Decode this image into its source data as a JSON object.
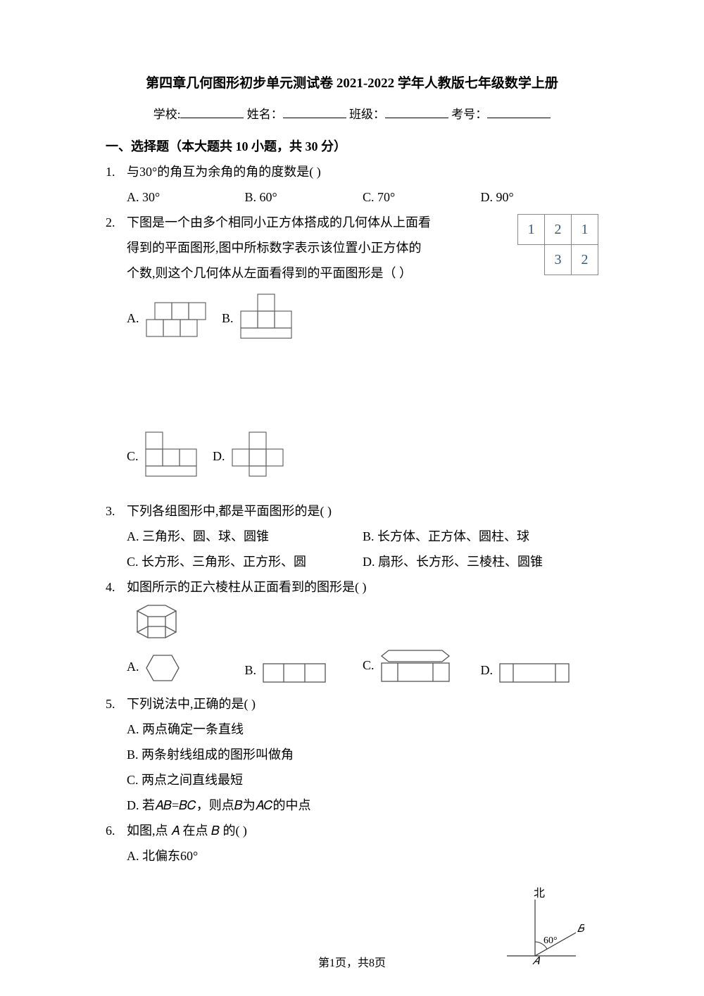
{
  "title": "第四章几何图形初步单元测试卷 2021-2022 学年人教版七年级数学上册",
  "info": {
    "school_label": "学校:",
    "name_label": "姓名：",
    "class_label": "班级：",
    "examno_label": "考号："
  },
  "section1": {
    "head": "一、选择题（本大题共 10 小题，共 30 分）"
  },
  "q1": {
    "num": "1.",
    "text": "与30°的角互为余角的角的度数是(    )",
    "optA": "A. 30°",
    "optB": "B. 60°",
    "optC": "C. 70°",
    "optD": "D. 90°"
  },
  "q2": {
    "num": "2.",
    "line1": "下图是一个由多个相同小正方体搭成的几何体从上面看",
    "line2": "得到的平面图形,图中所标数字表示该位置小正方体的",
    "line3": "个数,则这个几何体从左面看得到的平面图形是（    ）",
    "topview": [
      [
        "1",
        "2",
        "1"
      ],
      [
        "",
        "3",
        "2"
      ]
    ],
    "optA": "A.",
    "optB": "B.",
    "optC": "C.",
    "optD": "D.",
    "unit": 24,
    "stroke": "#666666",
    "stroke_width": 1.2,
    "shapeA": {
      "cols": 3,
      "heights": [
        1,
        1,
        1
      ],
      "gridH": 2
    },
    "shapeB": {
      "cols": 3,
      "heights": [
        1,
        2,
        1
      ],
      "gridH": 3
    },
    "shapeC": {
      "cols": 3,
      "heights": [
        2,
        1,
        1
      ],
      "gridH": 3
    },
    "shapeD": {
      "cols": 3,
      "heights": [
        1,
        2,
        1
      ],
      "gridH": 3,
      "offset_extra_bottom": true
    }
  },
  "q3": {
    "num": "3.",
    "text": "下列各组图形中,都是平面图形的是(    )",
    "optA": "A. 三角形、圆、球、圆锥",
    "optB": "B. 长方体、正方体、圆柱、球",
    "optC": "C. 长方形、三角形、正方形、圆",
    "optD": "D. 扇形、长方形、三棱柱、圆锥"
  },
  "q4": {
    "num": "4.",
    "text": "如图所示的正六棱柱从正面看到的图形是(    )",
    "optA": "A.",
    "optB": "B.",
    "optC": "C.",
    "optD": "D.",
    "stroke": "#555555",
    "stroke_width": 1.3
  },
  "q5": {
    "num": "5.",
    "text": "下列说法中,正确的是(    )",
    "optA": "A. 两点确定一条直线",
    "optB": "B. 两条射线组成的图形叫做角",
    "optC": "C. 两点之间直线最短",
    "optD": "D. 若𝐴𝐵=𝐵𝐶，则点𝐵为𝐴𝐶的中点"
  },
  "q6": {
    "num": "6.",
    "text": "如图,点 𝐴 在点 𝐵 的(    )",
    "optA": "A. 北偏东60°",
    "compass": {
      "north": "北",
      "angle": "60°",
      "A": "𝐴",
      "B": "𝐵",
      "stroke": "#333333"
    }
  },
  "footer": "第1页，共8页"
}
